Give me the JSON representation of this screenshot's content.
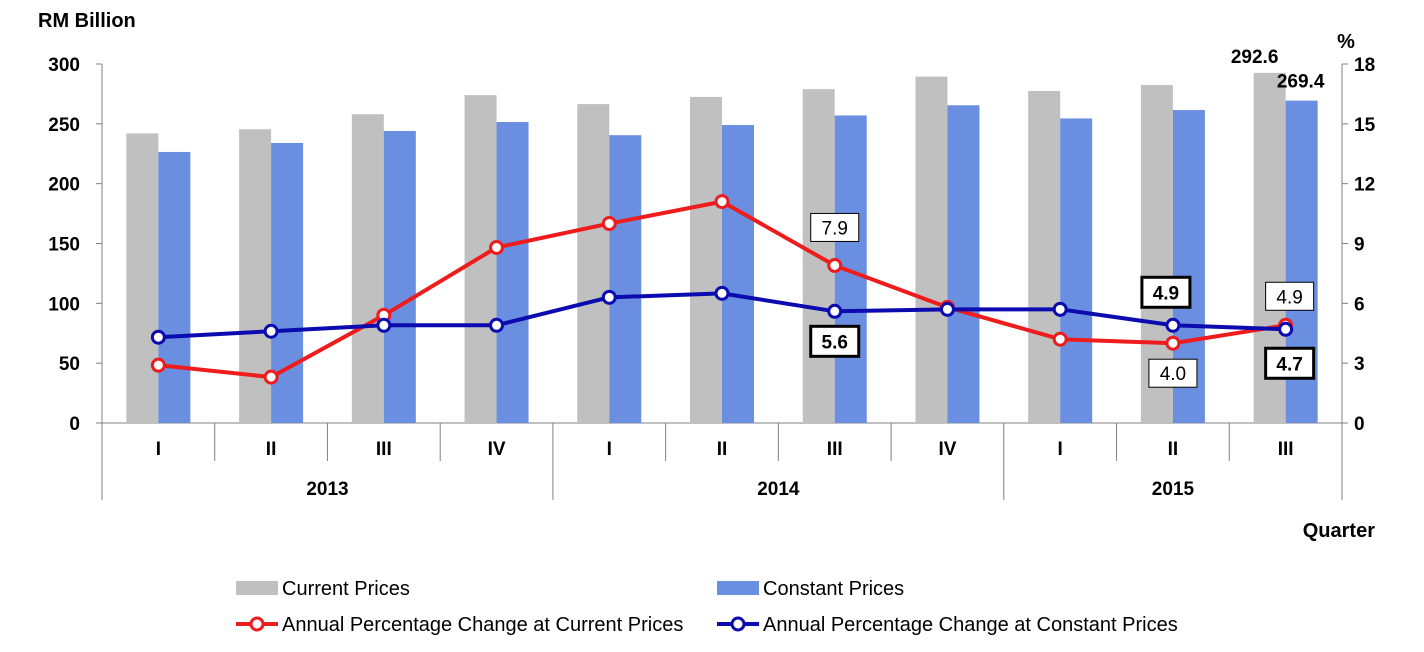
{
  "chart_data": {
    "type": "bar+line",
    "y_left": {
      "label": "RM Billion",
      "ylim": [
        0,
        300
      ],
      "ticks": [
        0,
        50,
        100,
        150,
        200,
        250,
        300
      ]
    },
    "y_right": {
      "label": "%",
      "ylim": [
        0,
        18
      ],
      "ticks": [
        0,
        3,
        6,
        9,
        12,
        15,
        18
      ]
    },
    "xlabel": "Quarter",
    "categories": [
      "I",
      "II",
      "III",
      "IV",
      "I",
      "II",
      "III",
      "IV",
      "I",
      "II",
      "III"
    ],
    "years": [
      {
        "label": "2013",
        "quarters": 4
      },
      {
        "label": "2014",
        "quarters": 4
      },
      {
        "label": "2015",
        "quarters": 3
      }
    ],
    "bar_series": [
      {
        "name": "Current Prices",
        "color": "#c0c0c0",
        "axis": "left",
        "values": [
          242,
          245.5,
          258,
          274,
          266.5,
          272.5,
          279,
          289.5,
          277.5,
          282.5,
          292.6
        ]
      },
      {
        "name": "Constant Prices",
        "color": "#6a8ee0",
        "axis": "left",
        "values": [
          226.5,
          234,
          244,
          251.5,
          240.5,
          249,
          257,
          265.5,
          254.5,
          261.5,
          269.4
        ]
      }
    ],
    "line_series": [
      {
        "name": "Annual Percentage Change at Current Prices",
        "color": "#ee1c1c",
        "axis": "right",
        "values": [
          2.9,
          2.3,
          5.4,
          8.8,
          10.0,
          11.1,
          7.9,
          5.8,
          4.2,
          4.0,
          4.9
        ]
      },
      {
        "name": "Annual Percentage Change at Constant Prices",
        "color": "#0b0bb0",
        "axis": "right",
        "values": [
          4.3,
          4.6,
          4.9,
          4.9,
          6.3,
          6.5,
          5.6,
          5.7,
          5.7,
          4.9,
          4.7
        ]
      }
    ],
    "annotations": [
      {
        "text": "292.6",
        "style": "bold",
        "series": 0,
        "index": 10
      },
      {
        "text": "269.4",
        "style": "bold",
        "series": 1,
        "index": 10
      },
      {
        "text": "7.9",
        "style": "boxed",
        "series": "current_pct",
        "index": 6
      },
      {
        "text": "5.6",
        "style": "boxed-bold",
        "series": "constant_pct",
        "index": 6
      },
      {
        "text": "4.9",
        "style": "boxed-bold",
        "series": "constant_pct",
        "index": 9
      },
      {
        "text": "4.0",
        "style": "boxed",
        "series": "current_pct",
        "index": 9
      },
      {
        "text": "4.9",
        "style": "boxed",
        "series": "current_pct",
        "index": 10
      },
      {
        "text": "4.7",
        "style": "boxed-bold",
        "series": "constant_pct",
        "index": 10
      }
    ],
    "legend_position": "bottom"
  }
}
